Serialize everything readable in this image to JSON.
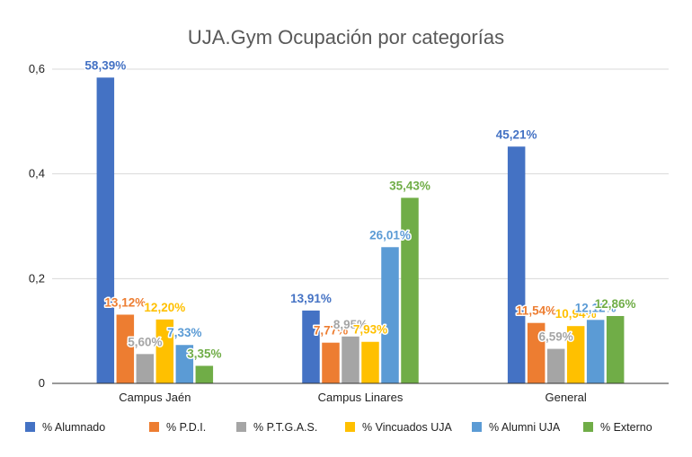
{
  "chart_data": {
    "type": "bar",
    "title": "UJA.Gym Ocupación por categorías",
    "categories": [
      "Campus Jaén",
      "Campus Linares",
      "General"
    ],
    "ylim": [
      0,
      0.6
    ],
    "yticks": [
      0,
      0.2,
      0.4,
      0.6
    ],
    "ytick_labels": [
      "0",
      "0,2",
      "0,4",
      "0,6"
    ],
    "grid": true,
    "legend_position": "bottom",
    "series": [
      {
        "name": "% Alumnado",
        "color": "#4472C4",
        "values": [
          0.5839,
          0.1391,
          0.4521
        ],
        "labels": [
          "58,39%",
          "13,91%",
          "45,21%"
        ]
      },
      {
        "name": "% P.D.I.",
        "color": "#ED7D31",
        "values": [
          0.1312,
          0.0777,
          0.1154
        ],
        "labels": [
          "13,12%",
          "7,77%",
          "11,54%"
        ]
      },
      {
        "name": "% P.T.G.A.S.",
        "color": "#A5A5A5",
        "values": [
          0.056,
          0.0895,
          0.0659
        ],
        "labels": [
          "5,60%",
          "8,95%",
          "6,59%"
        ]
      },
      {
        "name": "% Vincuados UJA",
        "color": "#FFC000",
        "values": [
          0.122,
          0.0793,
          0.1094
        ],
        "labels": [
          "12,20%",
          "7,93%",
          "10,94%"
        ]
      },
      {
        "name": "% Alumni UJA",
        "color": "#5B9BD5",
        "values": [
          0.0733,
          0.2601,
          0.1212
        ],
        "labels": [
          "7,33%",
          "26,01%",
          "12,12%"
        ]
      },
      {
        "name": "% Externo",
        "color": "#70AD47",
        "values": [
          0.0335,
          0.3543,
          0.1286
        ],
        "labels": [
          "3,35%",
          "35,43%",
          "12,86%"
        ]
      }
    ]
  }
}
